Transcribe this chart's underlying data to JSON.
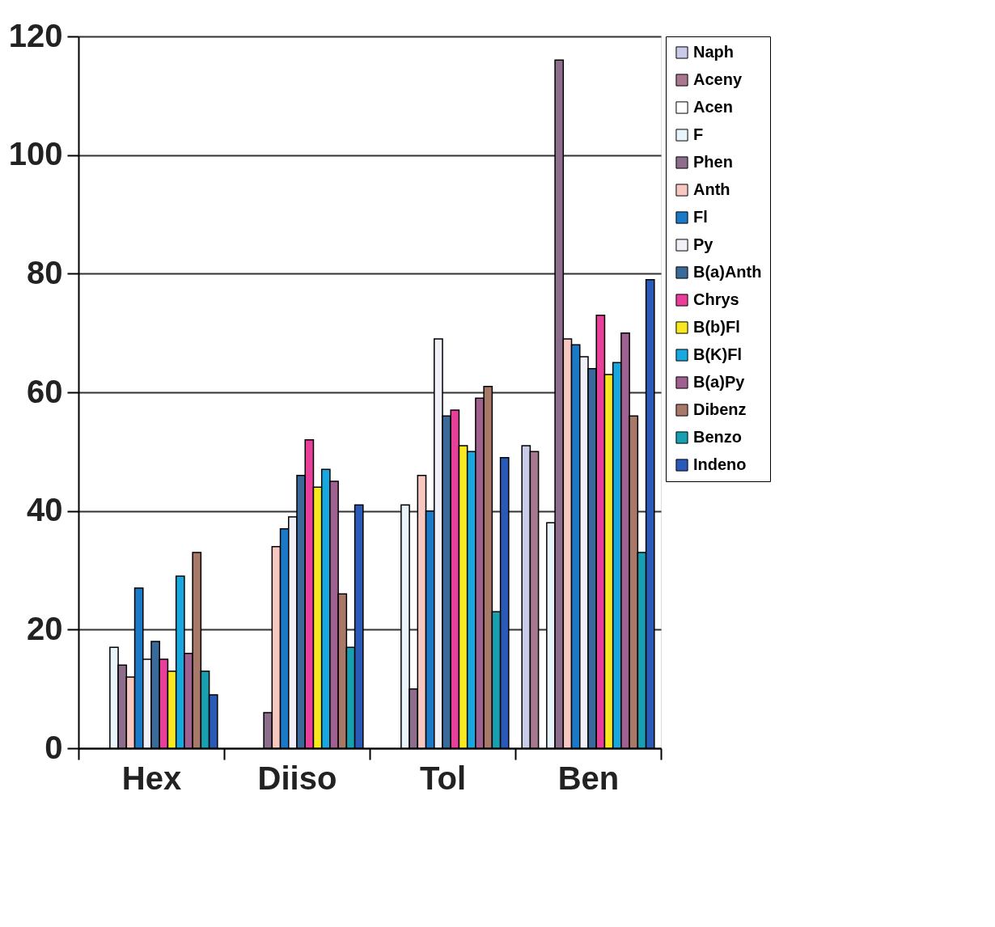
{
  "chart_data": {
    "type": "bar",
    "categories": [
      "Hex",
      "Diiso",
      "Tol",
      "Ben"
    ],
    "series": [
      {
        "name": "Naph",
        "color": "#c8cce8",
        "values": [
          null,
          null,
          null,
          51
        ]
      },
      {
        "name": "Aceny",
        "color": "#a87890",
        "values": [
          null,
          null,
          null,
          50
        ]
      },
      {
        "name": "Acen",
        "color": "#ffffff",
        "values": [
          null,
          null,
          null,
          null
        ]
      },
      {
        "name": "F",
        "color": "#e8f4fa",
        "values": [
          17,
          null,
          41,
          38
        ]
      },
      {
        "name": "Phen",
        "color": "#8c6e8c",
        "values": [
          14,
          6,
          10,
          116
        ]
      },
      {
        "name": "Anth",
        "color": "#f8c8c0",
        "values": [
          12,
          34,
          46,
          69
        ]
      },
      {
        "name": "Fl",
        "color": "#1a7ac8",
        "values": [
          27,
          37,
          40,
          68
        ]
      },
      {
        "name": "Py",
        "color": "#f0f0f8",
        "values": [
          15,
          39,
          69,
          66
        ]
      },
      {
        "name": "B(a)Anth",
        "color": "#3a6a9a",
        "values": [
          18,
          46,
          56,
          64
        ]
      },
      {
        "name": "Chrys",
        "color": "#e8409a",
        "values": [
          15,
          52,
          57,
          73
        ]
      },
      {
        "name": "B(b)Fl",
        "color": "#f8e820",
        "values": [
          13,
          44,
          51,
          63
        ]
      },
      {
        "name": "B(K)Fl",
        "color": "#18a8e0",
        "values": [
          29,
          47,
          50,
          65
        ]
      },
      {
        "name": "B(a)Py",
        "color": "#a06090",
        "values": [
          16,
          45,
          59,
          70
        ]
      },
      {
        "name": "Dibenz",
        "color": "#a87868",
        "values": [
          33,
          26,
          61,
          56
        ]
      },
      {
        "name": "Benzo",
        "color": "#18a0b0",
        "values": [
          13,
          17,
          23,
          33
        ]
      },
      {
        "name": "Indeno",
        "color": "#2a5ab8",
        "values": [
          9,
          41,
          49,
          79
        ]
      }
    ],
    "ylim": [
      0,
      120
    ],
    "yticks": [
      0,
      20,
      40,
      60,
      80,
      100,
      120
    ],
    "grid": "y",
    "legend": "right"
  }
}
